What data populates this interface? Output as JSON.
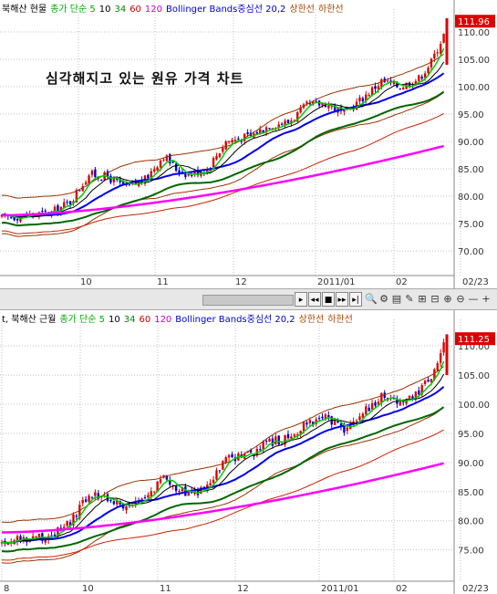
{
  "top_panel": {
    "legend": [
      {
        "text": "북해산 현물",
        "color": "#000000"
      },
      {
        "text": "종가 단순 5",
        "color": "#00aa00"
      },
      {
        "text": "10",
        "color": "#000000"
      },
      {
        "text": "34",
        "color": "#008800"
      },
      {
        "text": "60",
        "color": "#cc0000"
      },
      {
        "text": "120",
        "color": "#cc00cc"
      },
      {
        "text": "Bollinger Bands중심선 20,2",
        "color": "#0000cc"
      },
      {
        "text": "상한선",
        "color": "#aa4400"
      },
      {
        "text": "하한선",
        "color": "#aa4400"
      }
    ],
    "annotation": "심각해지고 있는 원유 가격 차트",
    "price_tag": "111.96",
    "y_ticks": [
      "110.00",
      "105.00",
      "100.00",
      "95.00",
      "90.00",
      "85.00",
      "80.00",
      "75.00",
      "70.00"
    ],
    "x_ticks": [
      "10",
      "11",
      "12",
      "2011/01",
      "02",
      "02/23"
    ]
  },
  "bottom_panel": {
    "legend": [
      {
        "text": "t, 북해산 근월",
        "color": "#000000"
      },
      {
        "text": "종가 단순 5",
        "color": "#00aa00"
      },
      {
        "text": "10",
        "color": "#000000"
      },
      {
        "text": "34",
        "color": "#008800"
      },
      {
        "text": "60",
        "color": "#cc0000"
      },
      {
        "text": "120",
        "color": "#cc00cc"
      },
      {
        "text": "Bollinger Bands중심선 20,2",
        "color": "#0000cc"
      },
      {
        "text": "상한선",
        "color": "#aa4400"
      },
      {
        "text": "하한선",
        "color": "#aa4400"
      }
    ],
    "price_tag": "111.25",
    "y_ticks": [
      "110.00",
      "105.00",
      "100.00",
      "95.00",
      "90.00",
      "85.00",
      "80.00",
      "75.00"
    ],
    "x_ticks": [
      "8",
      "10",
      "11",
      "12",
      "2011/01",
      "02",
      "02/23"
    ]
  },
  "toolbar": {
    "buttons": [
      "▸",
      "◂◂",
      "■",
      "▸▸",
      "▸|"
    ],
    "icons": [
      "🔍",
      "⚙",
      "▤",
      "✎",
      "⊞",
      "⊟",
      "⊕",
      "⊖",
      "—",
      "+"
    ]
  },
  "colors": {
    "up": "#dd0000",
    "down": "#0000cc",
    "ma5": "#00cc00",
    "ma10": "#000000",
    "ma34": "#006600",
    "ma60": "#cc2200",
    "ma120": "#ff00ff",
    "bb_mid": "#0000ee",
    "bb_band": "#993300",
    "grid": "#c0c0c0"
  }
}
